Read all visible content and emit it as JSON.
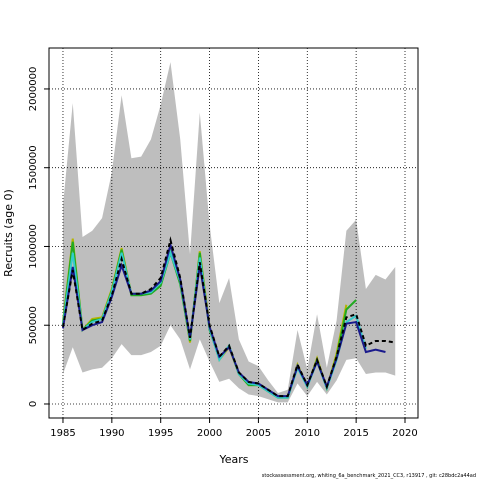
{
  "chart_data": {
    "type": "line",
    "x_label": "Years",
    "y_label": "Recruits (age 0)",
    "footer": "stockassessment.org, whiting_6a_benchmark_2021_CC3, r13917 , git: c28bdc2a44ad",
    "x": [
      1985,
      1986,
      1987,
      1988,
      1989,
      1990,
      1991,
      1992,
      1993,
      1994,
      1995,
      1996,
      1997,
      1998,
      1999,
      2000,
      2001,
      2002,
      2003,
      2004,
      2005,
      2006,
      2007,
      2008,
      2009,
      2010,
      2011,
      2012,
      2013,
      2014,
      2015,
      2016,
      2017,
      2018,
      2019
    ],
    "band": {
      "color": "#bebebe",
      "lower": [
        190000,
        360000,
        200000,
        220000,
        230000,
        290000,
        380000,
        310000,
        310000,
        330000,
        370000,
        500000,
        410000,
        220000,
        410000,
        270000,
        140000,
        160000,
        100000,
        60000,
        50000,
        30000,
        10000,
        10000,
        130000,
        50000,
        140000,
        60000,
        150000,
        280000,
        290000,
        190000,
        200000,
        200000,
        180000
      ],
      "upper": [
        1260000,
        1910000,
        1060000,
        1100000,
        1180000,
        1470000,
        1960000,
        1560000,
        1570000,
        1680000,
        1900000,
        2170000,
        1680000,
        950000,
        1850000,
        1140000,
        640000,
        800000,
        410000,
        270000,
        240000,
        150000,
        70000,
        90000,
        470000,
        220000,
        570000,
        230000,
        530000,
        1100000,
        1170000,
        730000,
        820000,
        790000,
        870000
      ]
    },
    "series": [
      {
        "color": "#b5b500",
        "values": [
          520000,
          1050000,
          470000,
          540000,
          550000,
          730000,
          990000,
          700000,
          700000,
          710000,
          760000,
          970000,
          780000,
          390000,
          970000,
          490000,
          280000,
          360000,
          190000,
          120000,
          120000,
          80000,
          40000,
          40000,
          250000,
          110000,
          290000,
          100000,
          320000,
          630000,
          null,
          null,
          null,
          null,
          null
        ]
      },
      {
        "color": "#22aa22",
        "values": [
          510000,
          1030000,
          470000,
          530000,
          540000,
          720000,
          980000,
          690000,
          690000,
          700000,
          750000,
          960000,
          760000,
          400000,
          960000,
          470000,
          290000,
          370000,
          190000,
          120000,
          120000,
          80000,
          40000,
          40000,
          240000,
          110000,
          280000,
          100000,
          300000,
          600000,
          660000,
          null,
          null,
          null,
          null
        ]
      },
      {
        "color": "#33cccc",
        "values": [
          500000,
          960000,
          470000,
          520000,
          540000,
          710000,
          960000,
          700000,
          700000,
          710000,
          770000,
          960000,
          780000,
          410000,
          930000,
          480000,
          280000,
          370000,
          190000,
          130000,
          120000,
          80000,
          40000,
          40000,
          230000,
          110000,
          270000,
          100000,
          280000,
          520000,
          560000,
          350000,
          null,
          null,
          null
        ]
      },
      {
        "color": "#1a1a8c",
        "values": [
          480000,
          870000,
          470000,
          500000,
          520000,
          680000,
          880000,
          700000,
          700000,
          720000,
          780000,
          1010000,
          790000,
          420000,
          880000,
          490000,
          300000,
          360000,
          200000,
          140000,
          130000,
          90000,
          50000,
          50000,
          240000,
          120000,
          270000,
          110000,
          290000,
          510000,
          520000,
          330000,
          345000,
          330000,
          null
        ]
      },
      {
        "color": "#000000",
        "dashed": true,
        "values": [
          490000,
          850000,
          470000,
          510000,
          530000,
          690000,
          920000,
          700000,
          700000,
          730000,
          800000,
          1040000,
          800000,
          420000,
          900000,
          500000,
          300000,
          370000,
          200000,
          140000,
          130000,
          90000,
          50000,
          50000,
          250000,
          120000,
          280000,
          110000,
          300000,
          550000,
          570000,
          370000,
          400000,
          400000,
          390000
        ]
      }
    ],
    "xlim": [
      1983.57,
      2021.33
    ],
    "ylim": [
      -89000,
      2260000
    ],
    "xticks": [
      1985,
      1990,
      1995,
      2000,
      2005,
      2010,
      2015,
      2020
    ],
    "yticks": [
      0,
      500000,
      1000000,
      1500000,
      2000000
    ],
    "grid": true
  }
}
